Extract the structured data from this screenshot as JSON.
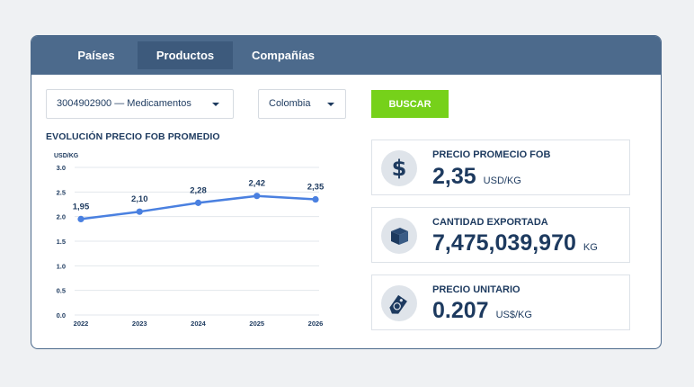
{
  "tabs": [
    {
      "label": "Países",
      "active": false
    },
    {
      "label": "Productos",
      "active": true
    },
    {
      "label": "Compañías",
      "active": false
    }
  ],
  "filters": {
    "product": "3004902900 — Medicamentos",
    "country": "Colombia",
    "search_label": "BUSCAR"
  },
  "chart_data": {
    "type": "line",
    "title": "EVOLUCIÓN PRECIO FOB PROMEDIO",
    "ylabel": "USD/KG",
    "xlabel": "",
    "ylim": [
      0,
      3.0
    ],
    "yticks": [
      "0.0",
      "0.5",
      "1.0",
      "1.5",
      "2.0",
      "2.5",
      "3.0"
    ],
    "categories": [
      "2022",
      "2023",
      "2024",
      "2025",
      "2026"
    ],
    "values": [
      1.95,
      2.1,
      2.28,
      2.42,
      2.35
    ],
    "data_labels": [
      "1,95",
      "2,10",
      "2,28",
      "2,42",
      "2,35"
    ],
    "grid": true,
    "color": "#4a80e0"
  },
  "stats": [
    {
      "label": "PRECIO PROMECIO FOB",
      "value": "2,35",
      "unit": "USD/KG",
      "icon": "dollar-icon"
    },
    {
      "label": "CANTIDAD EXPORTADA",
      "value": "7,475,039,970",
      "unit": "KG",
      "icon": "box-icon"
    },
    {
      "label": "PRECIO UNITARIO",
      "value": "0.207",
      "unit": "US$/KG",
      "icon": "price-tag-icon"
    }
  ]
}
